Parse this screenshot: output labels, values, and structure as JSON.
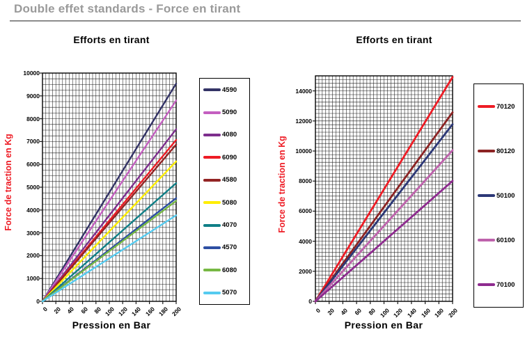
{
  "header": {
    "title": "Double effet standards - Force en tirant"
  },
  "chart_data": [
    {
      "type": "line",
      "title": "Efforts en tirant",
      "xlabel": "Pression en Bar",
      "ylabel": "Force de traction en Kg",
      "xlim": [
        0,
        200
      ],
      "ylim": [
        0,
        10000
      ],
      "x_major_step": 20,
      "x_minor_step": 5,
      "y_major_step": 1000,
      "y_minor_step": 250,
      "y_label_max": 10000,
      "grid": true,
      "legend_position": "right",
      "x": [
        0,
        200
      ],
      "series": [
        {
          "name": "4590",
          "color": "#333366",
          "values": [
            0,
            9540
          ]
        },
        {
          "name": "5090",
          "color": "#C45FC0",
          "values": [
            0,
            8800
          ]
        },
        {
          "name": "4080",
          "color": "#7D2E8D",
          "values": [
            0,
            7540
          ]
        },
        {
          "name": "6090",
          "color": "#EE1C25",
          "values": [
            0,
            7070
          ]
        },
        {
          "name": "4580",
          "color": "#932424",
          "values": [
            0,
            6870
          ]
        },
        {
          "name": "5080",
          "color": "#FFEE00",
          "values": [
            0,
            6130
          ]
        },
        {
          "name": "4070",
          "color": "#0F7F87",
          "values": [
            0,
            5180
          ]
        },
        {
          "name": "4570",
          "color": "#2E4FA3",
          "values": [
            0,
            4520
          ]
        },
        {
          "name": "6080",
          "color": "#77B843",
          "values": [
            0,
            4400
          ]
        },
        {
          "name": "5070",
          "color": "#55CBF0",
          "values": [
            0,
            3770
          ]
        }
      ]
    },
    {
      "type": "line",
      "title": "Efforts en tirant",
      "xlabel": "Pression en Bar",
      "ylabel": "Force de traction en Kg",
      "xlim": [
        0,
        200
      ],
      "ylim": [
        0,
        15000
      ],
      "x_major_step": 20,
      "x_minor_step": 5,
      "y_major_step": 2000,
      "y_minor_step": 250,
      "y_label_max": 14000,
      "grid": true,
      "legend_position": "right",
      "x": [
        0,
        200
      ],
      "series": [
        {
          "name": "70120",
          "color": "#EE1C25",
          "values": [
            0,
            14920
          ]
        },
        {
          "name": "80120",
          "color": "#8C2323",
          "values": [
            0,
            12570
          ]
        },
        {
          "name": "50100",
          "color": "#2C3877",
          "values": [
            0,
            11780
          ]
        },
        {
          "name": "60100",
          "color": "#BE62AC",
          "values": [
            0,
            10050
          ]
        },
        {
          "name": "70100",
          "color": "#8E2B8F",
          "values": [
            0,
            8010
          ]
        }
      ]
    }
  ]
}
